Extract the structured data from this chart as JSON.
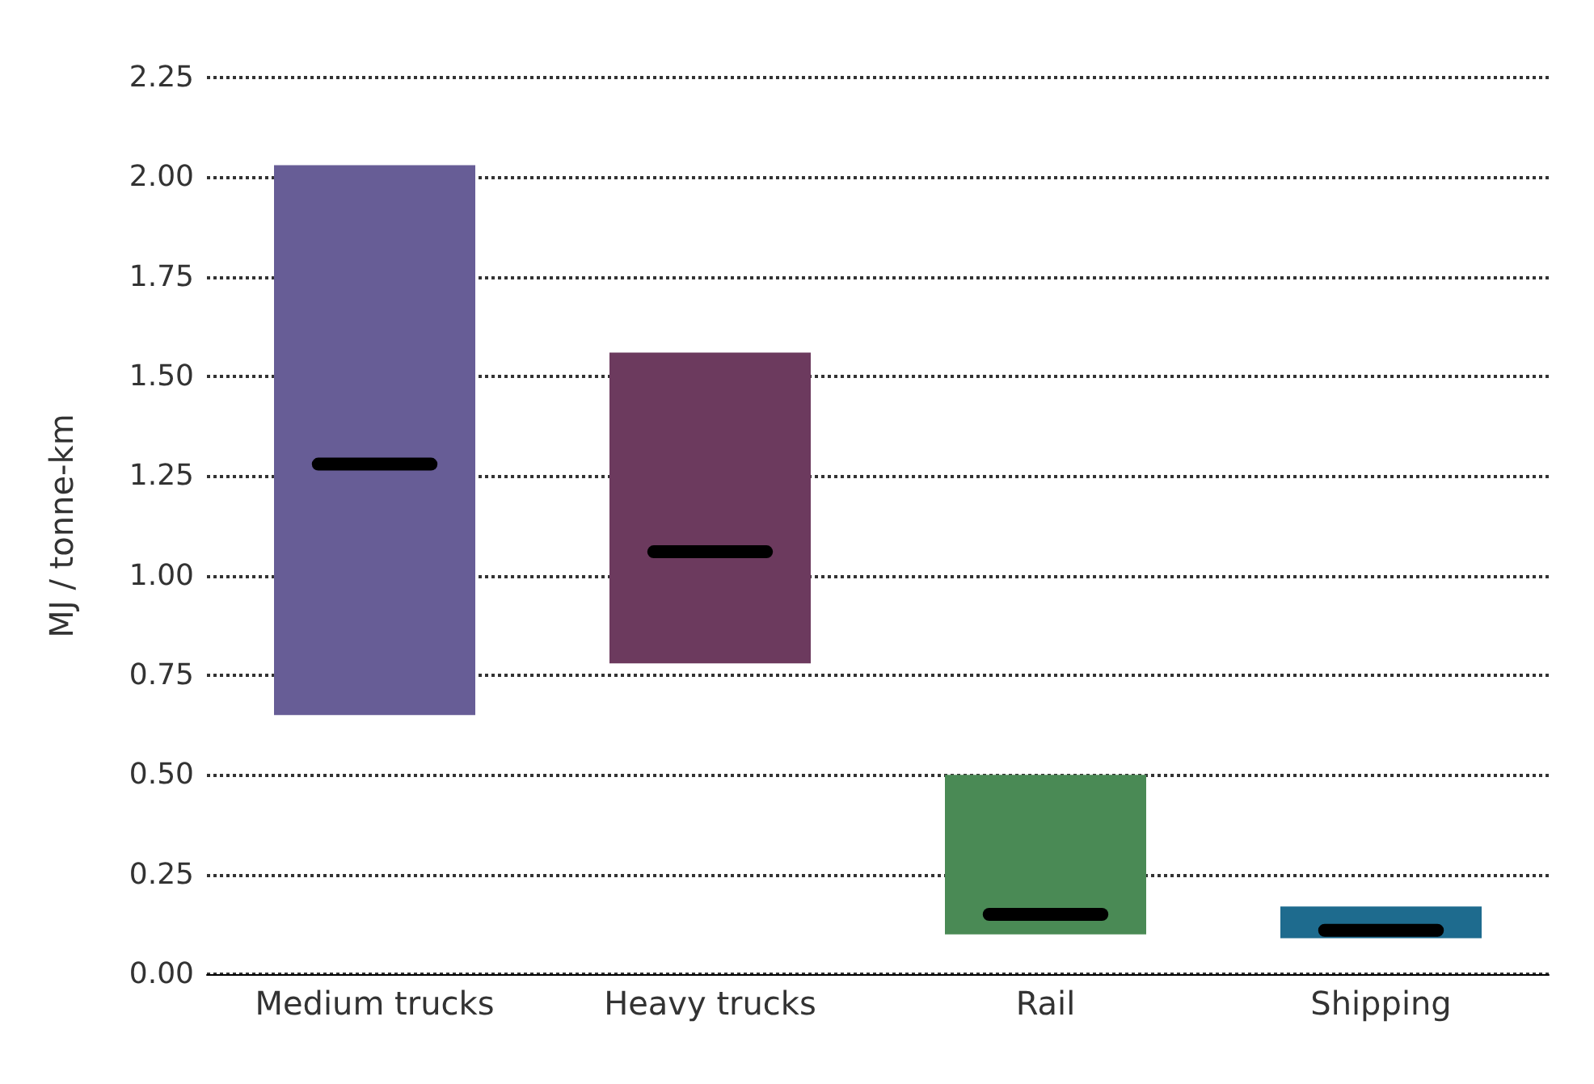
{
  "chart_data": {
    "type": "box",
    "ylabel": "MJ / tonne-km",
    "categories": [
      "Medium trucks",
      "Heavy trucks",
      "Rail",
      "Shipping"
    ],
    "colors": [
      "#675d96",
      "#6c3a5e",
      "#4a8a55",
      "#1e6b8e"
    ],
    "boxes": [
      {
        "low": 0.65,
        "q1": 0.65,
        "median": 1.28,
        "q3": 2.03,
        "high": 2.03
      },
      {
        "low": 0.78,
        "q1": 0.78,
        "median": 1.06,
        "q3": 1.56,
        "high": 1.56
      },
      {
        "low": 0.1,
        "q1": 0.1,
        "median": 0.15,
        "q3": 0.5,
        "high": 0.5
      },
      {
        "low": 0.09,
        "q1": 0.09,
        "median": 0.11,
        "q3": 0.17,
        "high": 0.17
      }
    ],
    "ylim": [
      0,
      2.25
    ],
    "yticks": [
      {
        "value": 0,
        "label": "0.00"
      },
      0.25,
      {
        "value": 0.5,
        "label": "0.50"
      },
      0.75,
      {
        "value": 1,
        "label": "1.00"
      },
      1.25,
      {
        "value": 1.5,
        "label": "1.50"
      },
      1.75,
      {
        "value": 2,
        "label": "2.00"
      },
      2.25
    ],
    "grid": "y"
  }
}
